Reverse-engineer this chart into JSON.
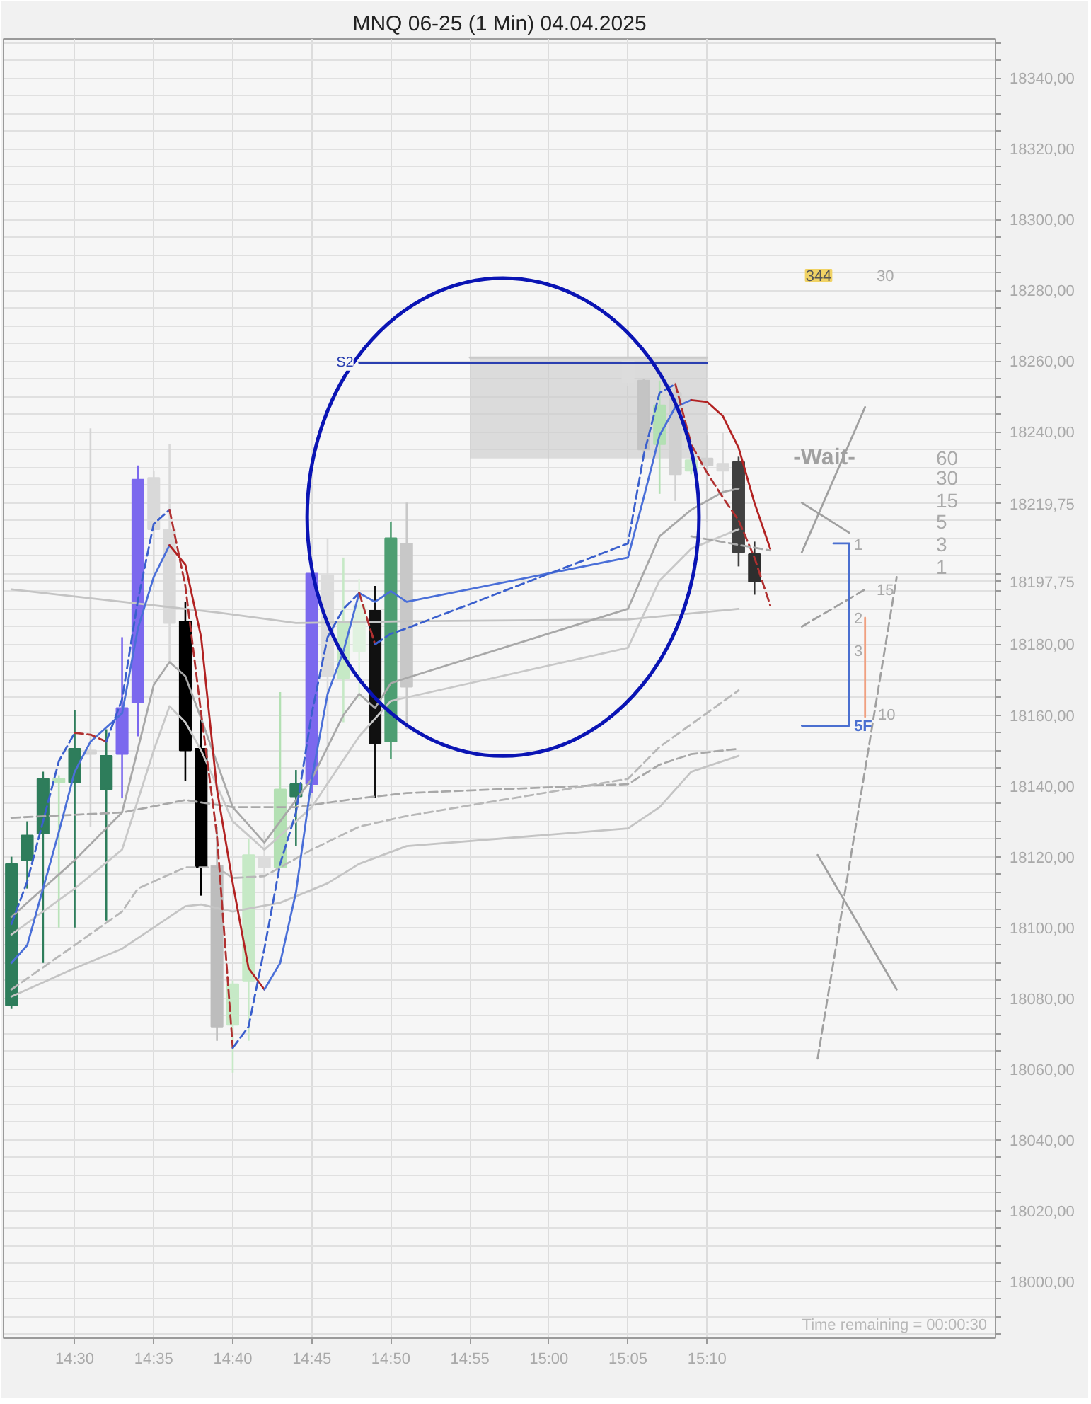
{
  "chart_data": {
    "type": "candlestick",
    "title": "MNQ 06-25 (1 Min) 04.04.2025",
    "x": [
      "2025-04-04T14:26",
      "2025-04-04T14:27",
      "2025-04-04T14:28",
      "2025-04-04T14:29",
      "2025-04-04T14:30",
      "2025-04-04T14:31",
      "2025-04-04T14:32",
      "2025-04-04T14:33",
      "2025-04-04T14:34",
      "2025-04-04T14:35",
      "2025-04-04T14:36",
      "2025-04-04T14:37",
      "2025-04-04T14:38",
      "2025-04-04T14:39",
      "2025-04-04T14:40",
      "2025-04-04T14:41",
      "2025-04-04T14:42",
      "2025-04-04T14:43",
      "2025-04-04T14:44",
      "2025-04-04T14:45",
      "2025-04-04T14:46",
      "2025-04-04T14:47",
      "2025-04-04T14:48",
      "2025-04-04T14:49",
      "2025-04-04T14:50",
      "2025-04-04T14:51",
      "2025-04-04T15:05",
      "2025-04-04T15:06",
      "2025-04-04T15:07",
      "2025-04-04T15:08",
      "2025-04-04T15:09",
      "2025-04-04T15:10",
      "2025-04-04T15:11",
      "2025-04-04T15:12",
      "2025-04-04T15:13"
    ],
    "ohlc": [
      [
        18078,
        18120,
        18077,
        18118
      ],
      [
        18119,
        18130,
        18111,
        18126
      ],
      [
        18126.5,
        18144,
        18090,
        18142
      ],
      [
        18141,
        18143,
        18100,
        18142
      ],
      [
        18141,
        18161.5,
        18100,
        18150.5
      ],
      [
        18149,
        18241,
        18128.5,
        18150
      ],
      [
        18139,
        18156,
        18102,
        18148.5
      ],
      [
        18149,
        18182,
        18136.5,
        18162
      ],
      [
        18163.5,
        18230.5,
        18154,
        18226.5
      ],
      [
        18227,
        18229,
        18196,
        18212.5
      ],
      [
        18212.5,
        18236.5,
        18175,
        18186
      ],
      [
        18186.5,
        18192,
        18141.5,
        18150
      ],
      [
        18150.5,
        18160,
        18109,
        18117
      ],
      [
        18117.5,
        18128.5,
        18068,
        18072
      ],
      [
        18072.5,
        18085,
        18059,
        18084
      ],
      [
        18085,
        18125,
        18068,
        18120.5
      ],
      [
        18120,
        18127,
        18100,
        18117
      ],
      [
        18117,
        18166.5,
        18117,
        18139
      ],
      [
        18137,
        18144.5,
        18123,
        18140.5
      ],
      [
        18140.5,
        18202,
        18138,
        18200
      ],
      [
        18199.5,
        18210,
        18135,
        18171
      ],
      [
        18170.5,
        18204.5,
        18158,
        18186.5
      ],
      [
        18178,
        18198.5,
        18164.5,
        18191
      ],
      [
        18189.5,
        18196.5,
        18136.5,
        18152
      ],
      [
        18152.5,
        18214.5,
        18147.5,
        18210
      ],
      [
        18208.5,
        18220,
        18156,
        18168
      ],
      [
        18260,
        18274.5,
        18253,
        18254
      ],
      [
        18254.5,
        18255,
        18232.5,
        18235
      ],
      [
        18236.5,
        18254.5,
        18222.5,
        18247.5
      ],
      [
        18251,
        18254,
        18220.5,
        18228
      ],
      [
        18229,
        18233,
        18228,
        18232
      ],
      [
        18232.5,
        18239,
        18214.5,
        18230.5
      ],
      [
        18231,
        18240,
        18222,
        18229
      ],
      [
        18231.5,
        18233,
        18202,
        18206
      ],
      [
        18205.5,
        18209,
        18194,
        18197.75
      ]
    ],
    "colors": [
      "#2e7d5b",
      "#2e7d5b",
      "#2e7d5b",
      "#b9e3b9",
      "#2e7d5b",
      "#d4d4d4",
      "#2e7d5b",
      "#7b68ee",
      "#7b68ee",
      "#d9d9d9",
      "#d9d9d9",
      "#000000",
      "#000000",
      "#bdbdbd",
      "#c6e9c6",
      "#c6e9c6",
      "#dcdcdc",
      "#b3e0b3",
      "#2e7d5b",
      "#7b68ee",
      "#dcdcdc",
      "#c6e9c6",
      "#e0f2e0",
      "#111111",
      "#4d9e72",
      "#c8c8c8",
      "#dcdcdc",
      "#c4c4c4",
      "#b3e0b3",
      "#d0d0d0",
      "#c6e9c6",
      "#d0d0d0",
      "#d9d9d9",
      "#404040",
      "#2e2e2e"
    ],
    "series": [
      {
        "type": "line",
        "color": "#c9c9c9",
        "line_style": "solid",
        "x": [
          "2025-04-04T14:55",
          "2025-04-04T15:10"
        ],
        "values": [
          18261,
          18261
        ],
        "lower": [
          18232.5,
          18232.5
        ],
        "upper": [
          18261,
          18261
        ]
      },
      {
        "type": "line",
        "color": "#c4c4c4",
        "line_style": "solid",
        "x": [
          "2025-04-04T14:26",
          "2025-04-04T14:33",
          "2025-04-04T14:39",
          "2025-04-04T14:44",
          "2025-04-04T14:51",
          "2025-04-04T15:05",
          "2025-04-04T15:12"
        ],
        "values": [
          18195.5,
          18192,
          18189,
          18186,
          18186.5,
          18187,
          18190
        ]
      },
      {
        "type": "line",
        "color": "#c4c4c4",
        "line_style": "solid",
        "x": [
          "2025-04-04T14:26",
          "2025-04-04T14:30",
          "2025-04-04T14:33",
          "2025-04-04T14:37",
          "2025-04-04T14:38",
          "2025-04-04T14:40",
          "2025-04-04T14:43",
          "2025-04-04T14:46",
          "2025-04-04T14:48",
          "2025-04-04T14:51",
          "2025-04-04T15:05",
          "2025-04-04T15:07",
          "2025-04-04T15:09",
          "2025-04-04T15:12"
        ],
        "values": [
          18080.5,
          18088.5,
          18094,
          18106,
          18106.5,
          18104.5,
          18107,
          18112.5,
          18118,
          18123,
          18128,
          18134,
          18144,
          18148.5
        ]
      },
      {
        "type": "line",
        "color": "#a8a8a8",
        "line_style": "dashed",
        "x": [
          "2025-04-04T14:26",
          "2025-04-04T14:33",
          "2025-04-04T14:37",
          "2025-04-04T14:40",
          "2025-04-04T14:44",
          "2025-04-04T14:48",
          "2025-04-04T14:51",
          "2025-04-04T15:05",
          "2025-04-04T15:07",
          "2025-04-04T15:09",
          "2025-04-04T15:12"
        ],
        "values": [
          18131,
          18132.5,
          18136,
          18134,
          18134,
          18136.5,
          18138,
          18140.5,
          18146,
          18149,
          18150.5
        ]
      },
      {
        "type": "line",
        "color": "#b8b8b8",
        "line_style": "dashed",
        "x": [
          "2025-04-04T14:26",
          "2025-04-04T14:30",
          "2025-04-04T14:33",
          "2025-04-04T14:34",
          "2025-04-04T14:37",
          "2025-04-04T14:39",
          "2025-04-04T14:40",
          "2025-04-04T14:42",
          "2025-04-04T14:45",
          "2025-04-04T14:48",
          "2025-04-04T14:51",
          "2025-04-04T15:05",
          "2025-04-04T15:07",
          "2025-04-04T15:12"
        ],
        "values": [
          18082.5,
          18095,
          18104.5,
          18111,
          18117,
          18117,
          18114,
          18114.5,
          18122,
          18128.5,
          18131.5,
          18142,
          18151,
          18167
        ]
      },
      {
        "type": "line",
        "color": "#a8a8a8",
        "line_style": "solid",
        "x": [
          "2025-04-04T14:26",
          "2025-04-04T14:30",
          "2025-04-04T14:33",
          "2025-04-04T14:35",
          "2025-04-04T14:36",
          "2025-04-04T14:37",
          "2025-04-04T14:38",
          "2025-04-04T14:40",
          "2025-04-04T14:42",
          "2025-04-04T14:45",
          "2025-04-04T14:47",
          "2025-04-04T14:48",
          "2025-04-04T14:49",
          "2025-04-04T14:50",
          "2025-04-04T14:51",
          "2025-04-04T15:05",
          "2025-04-04T15:07",
          "2025-04-04T15:09",
          "2025-04-04T15:11",
          "2025-04-04T15:12"
        ],
        "values": [
          18103,
          18119,
          18132.5,
          18168.5,
          18175,
          18171,
          18159,
          18134,
          18124,
          18142,
          18160,
          18166,
          18162,
          18169,
          18170.5,
          18190,
          18210.5,
          18218,
          18223,
          18224
        ]
      },
      {
        "type": "line",
        "color": "#c8c8c8",
        "line_style": "solid",
        "x": [
          "2025-04-04T14:26",
          "2025-04-04T14:30",
          "2025-04-04T14:33",
          "2025-04-04T14:35",
          "2025-04-04T14:36",
          "2025-04-04T14:37",
          "2025-04-04T14:38",
          "2025-04-04T14:40",
          "2025-04-04T14:42",
          "2025-04-04T14:45",
          "2025-04-04T14:48",
          "2025-04-04T14:50",
          "2025-04-04T14:51",
          "2025-04-04T15:05",
          "2025-04-04T15:07",
          "2025-04-04T15:09",
          "2025-04-04T15:12"
        ],
        "values": [
          18098,
          18111,
          18122,
          18150,
          18162.5,
          18158,
          18150,
          18130,
          18122,
          18134,
          18154,
          18164,
          18165,
          18179,
          18198,
          18207,
          18212.5
        ]
      },
      {
        "type": "line",
        "color": "#4a6fd8",
        "line_style": "solid",
        "x": [
          "2025-04-04T14:26",
          "2025-04-04T14:27",
          "2025-04-04T14:28",
          "2025-04-04T14:29",
          "2025-04-04T14:30",
          "2025-04-04T14:31",
          "2025-04-04T14:32",
          "2025-04-04T14:33",
          "2025-04-04T14:34",
          "2025-04-04T14:35",
          "2025-04-04T14:36"
        ],
        "values": [
          18090,
          18095,
          18111,
          18127,
          18144,
          18152.5,
          18156.5,
          18160.5,
          18184.5,
          18199,
          18208
        ]
      },
      {
        "type": "line",
        "color": "#b22222",
        "line_style": "solid",
        "x": [
          "2025-04-04T14:36",
          "2025-04-04T14:37",
          "2025-04-04T14:38",
          "2025-04-04T14:39",
          "2025-04-04T14:40",
          "2025-04-04T14:41",
          "2025-04-04T14:42"
        ],
        "values": [
          18208,
          18202.5,
          18182,
          18139,
          18112.5,
          18088.5,
          18082.5
        ]
      },
      {
        "type": "line",
        "color": "#4a6fd8",
        "line_style": "solid",
        "x": [
          "2025-04-04T14:42",
          "2025-04-04T14:43",
          "2025-04-04T14:44",
          "2025-04-04T14:45",
          "2025-04-04T14:46",
          "2025-04-04T14:47",
          "2025-04-04T14:48",
          "2025-04-04T14:49",
          "2025-04-04T14:50",
          "2025-04-04T14:51",
          "2025-04-04T15:05",
          "2025-04-04T15:06",
          "2025-04-04T15:07",
          "2025-04-04T15:08",
          "2025-04-04T15:09"
        ],
        "values": [
          18082.5,
          18090,
          18110,
          18142,
          18166,
          18178,
          18194.5,
          18192,
          18195,
          18192,
          18204.5,
          18221.5,
          18239,
          18247,
          18249
        ]
      },
      {
        "type": "line",
        "color": "#b22222",
        "line_style": "solid",
        "x": [
          "2025-04-04T15:09",
          "2025-04-04T15:10",
          "2025-04-04T15:11",
          "2025-04-04T15:12",
          "2025-04-04T15:13",
          "2025-04-04T15:14"
        ],
        "values": [
          18249,
          18248.5,
          18244.5,
          18235.5,
          18220,
          18207
        ]
      },
      {
        "type": "line",
        "color": "#3a5fcd",
        "line_style": "dashed",
        "x": [
          "2025-04-04T14:26",
          "2025-04-04T14:27",
          "2025-04-04T14:28",
          "2025-04-04T14:29",
          "2025-04-04T14:30"
        ],
        "values": [
          18101,
          18113,
          18130,
          18147,
          18155
        ]
      },
      {
        "type": "line",
        "color": "#b03030",
        "line_style": "dashed",
        "x": [
          "2025-04-04T14:30",
          "2025-04-04T14:31",
          "2025-04-04T14:32"
        ],
        "values": [
          18155,
          18154.5,
          18152.5
        ]
      },
      {
        "type": "line",
        "color": "#3a5fcd",
        "line_style": "dashed",
        "x": [
          "2025-04-04T14:32",
          "2025-04-04T14:33",
          "2025-04-04T14:34",
          "2025-04-04T14:35",
          "2025-04-04T14:36"
        ],
        "values": [
          18152.5,
          18164.5,
          18192.5,
          18214,
          18218
        ]
      },
      {
        "type": "line",
        "color": "#b03030",
        "line_style": "dashed",
        "x": [
          "2025-04-04T14:36",
          "2025-04-04T14:37",
          "2025-04-04T14:38",
          "2025-04-04T14:39",
          "2025-04-04T14:40"
        ],
        "values": [
          18218,
          18196.5,
          18160.5,
          18126,
          18066
        ]
      },
      {
        "type": "line",
        "color": "#3a5fcd",
        "line_style": "dashed",
        "x": [
          "2025-04-04T14:40",
          "2025-04-04T14:41",
          "2025-04-04T14:42",
          "2025-04-04T14:43",
          "2025-04-04T14:44",
          "2025-04-04T14:45",
          "2025-04-04T14:46",
          "2025-04-04T14:47",
          "2025-04-04T14:48"
        ],
        "values": [
          18066,
          18072,
          18094,
          18118,
          18132.5,
          18160.5,
          18182,
          18190,
          18194.5
        ]
      },
      {
        "type": "line",
        "color": "#b03030",
        "line_style": "dashed",
        "x": [
          "2025-04-04T14:48",
          "2025-04-04T14:49"
        ],
        "values": [
          18194.5,
          18180
        ]
      },
      {
        "type": "line",
        "color": "#3a5fcd",
        "line_style": "dashed",
        "x": [
          "2025-04-04T14:49",
          "2025-04-04T14:50",
          "2025-04-04T14:51",
          "2025-04-04T15:05",
          "2025-04-04T15:06",
          "2025-04-04T15:07",
          "2025-04-04T15:08"
        ],
        "values": [
          18180,
          18183,
          18184.5,
          18208.5,
          18233.5,
          18251,
          18253.5
        ]
      },
      {
        "type": "line",
        "color": "#b03030",
        "line_style": "dashed",
        "x": [
          "2025-04-04T15:08",
          "2025-04-04T15:09",
          "2025-04-04T15:10",
          "2025-04-04T15:11",
          "2025-04-04T15:12",
          "2025-04-04T15:13",
          "2025-04-04T15:14"
        ],
        "values": [
          18253.5,
          18236.5,
          18228.5,
          18221.5,
          18215,
          18204.5,
          18191
        ]
      },
      {
        "type": "line",
        "color": "#a8a8a8",
        "line_style": "dashed",
        "x": [
          "2025-04-04T15:09",
          "2025-04-04T15:14"
        ],
        "values": [
          18210.5,
          18206.5
        ]
      },
      {
        "type": "line",
        "name": "S2",
        "color": "#2a3fb0",
        "line_style": "solid",
        "x": [
          "2025-04-04T14:48",
          "2025-04-04T15:10"
        ],
        "values": [
          18259.5,
          18259.5
        ]
      },
      {
        "type": "line",
        "color": "#a0a0a0",
        "line_style": "solid",
        "x": [
          "2025-04-04T15:16",
          "2025-04-04T15:20"
        ],
        "values": [
          18206,
          18247
        ]
      },
      {
        "type": "line",
        "color": "#a0a0a0",
        "line_style": "solid",
        "x": [
          "2025-04-04T15:16",
          "2025-04-04T15:19"
        ],
        "values": [
          18220,
          18211.5
        ]
      },
      {
        "type": "line",
        "color": "#a0a0a0",
        "line_style": "dashed",
        "x": [
          "2025-04-04T15:16",
          "2025-04-04T15:20"
        ],
        "values": [
          18185,
          18195.5
        ]
      },
      {
        "type": "line",
        "color": "#a0a0a0",
        "line_style": "dashed",
        "x": [
          "2025-04-04T15:17",
          "2025-04-04T15:22"
        ],
        "values": [
          18063,
          18199
        ]
      },
      {
        "type": "line",
        "color": "#a0a0a0",
        "line_style": "solid",
        "x": [
          "2025-04-04T15:17",
          "2025-04-04T15:22"
        ],
        "values": [
          18120.5,
          18082.5
        ]
      },
      {
        "type": "line",
        "color": "#4a6fd0",
        "line_style": "solid",
        "x": [
          "2025-04-04T15:16",
          "2025-04-04T15:19",
          "2025-04-04T15:19",
          "2025-04-04T15:18"
        ],
        "values": [
          18157,
          18157,
          18208.5,
          18208.5
        ]
      },
      {
        "type": "line",
        "color": "#f0a080",
        "line_style": "solid",
        "x": [
          "2025-04-04T15:20",
          "2025-04-04T15:20"
        ],
        "values": [
          18187.5,
          18159.5
        ]
      }
    ],
    "annotations": [
      "344",
      "30",
      "-Wait-",
      "60",
      "30",
      "15",
      "5",
      "3",
      "1",
      "1",
      "15",
      "2",
      "3",
      "10",
      "5F",
      "Time remaining = 00:00:30"
    ],
    "xlim": [
      "2025-04-04T14:25:30",
      "2025-04-04T15:28:15"
    ],
    "xticks": [
      {
        "value": "2025-04-04T14:30",
        "label": "14:30"
      },
      {
        "value": "2025-04-04T14:35",
        "label": "14:35"
      },
      {
        "value": "2025-04-04T14:40",
        "label": "14:40"
      },
      {
        "value": "2025-04-04T14:45",
        "label": "14:45"
      },
      {
        "value": "2025-04-04T14:50",
        "label": "14:50"
      },
      {
        "value": "2025-04-04T14:55",
        "label": "14:55"
      },
      {
        "value": "2025-04-04T15:00",
        "label": "15:00"
      },
      {
        "value": "2025-04-04T15:05",
        "label": "15:05"
      },
      {
        "value": "2025-04-04T15:10",
        "label": "15:10"
      }
    ],
    "ylim": [
      17984,
      18351
    ],
    "yticks": [
      {
        "value": 17985,
        "label": null
      },
      {
        "value": 17990,
        "label": null
      },
      {
        "value": 17995,
        "label": null
      },
      {
        "value": 18000,
        "label": "18000,00"
      },
      {
        "value": 18005,
        "label": null
      },
      {
        "value": 18010,
        "label": null
      },
      {
        "value": 18015,
        "label": null
      },
      {
        "value": 18020,
        "label": "18020,00"
      },
      {
        "value": 18025,
        "label": null
      },
      {
        "value": 18030,
        "label": null
      },
      {
        "value": 18035,
        "label": null
      },
      {
        "value": 18040,
        "label": "18040,00"
      },
      {
        "value": 18045,
        "label": null
      },
      {
        "value": 18050,
        "label": null
      },
      {
        "value": 18055,
        "label": null
      },
      {
        "value": 18060,
        "label": "18060,00"
      },
      {
        "value": 18065,
        "label": null
      },
      {
        "value": 18070,
        "label": null
      },
      {
        "value": 18075,
        "label": null
      },
      {
        "value": 18080,
        "label": "18080,00"
      },
      {
        "value": 18085,
        "label": null
      },
      {
        "value": 18090,
        "label": null
      },
      {
        "value": 18095,
        "label": null
      },
      {
        "value": 18100,
        "label": "18100,00"
      },
      {
        "value": 18105,
        "label": null
      },
      {
        "value": 18110,
        "label": null
      },
      {
        "value": 18115,
        "label": null
      },
      {
        "value": 18120,
        "label": "18120,00"
      },
      {
        "value": 18125,
        "label": null
      },
      {
        "value": 18130,
        "label": null
      },
      {
        "value": 18135,
        "label": null
      },
      {
        "value": 18140,
        "label": "18140,00"
      },
      {
        "value": 18145,
        "label": null
      },
      {
        "value": 18150,
        "label": null
      },
      {
        "value": 18155,
        "label": null
      },
      {
        "value": 18160,
        "label": "18160,00"
      },
      {
        "value": 18165,
        "label": null
      },
      {
        "value": 18170,
        "label": null
      },
      {
        "value": 18175,
        "label": null
      },
      {
        "value": 18180,
        "label": "18180,00"
      },
      {
        "value": 18185,
        "label": null
      },
      {
        "value": 18190,
        "label": null
      },
      {
        "value": 18195,
        "label": null
      },
      {
        "value": 18197.75,
        "label": "18197,75"
      },
      {
        "value": 18200,
        "label": null
      },
      {
        "value": 18205,
        "label": null
      },
      {
        "value": 18210,
        "label": null
      },
      {
        "value": 18215,
        "label": null
      },
      {
        "value": 18219.75,
        "label": "18219,75"
      },
      {
        "value": 18220,
        "label": null
      },
      {
        "value": 18225,
        "label": null
      },
      {
        "value": 18230,
        "label": null
      },
      {
        "value": 18235,
        "label": null
      },
      {
        "value": 18240,
        "label": "18240,00"
      },
      {
        "value": 18245,
        "label": null
      },
      {
        "value": 18250,
        "label": null
      },
      {
        "value": 18255,
        "label": null
      },
      {
        "value": 18260,
        "label": "18260,00"
      },
      {
        "value": 18265,
        "label": null
      },
      {
        "value": 18270,
        "label": null
      },
      {
        "value": 18275,
        "label": null
      },
      {
        "value": 18280,
        "label": "18280,00"
      },
      {
        "value": 18285,
        "label": null
      },
      {
        "value": 18290,
        "label": null
      },
      {
        "value": 18295,
        "label": null
      },
      {
        "value": 18300,
        "label": "18300,00"
      },
      {
        "value": 18305,
        "label": null
      },
      {
        "value": 18310,
        "label": null
      },
      {
        "value": 18315,
        "label": null
      },
      {
        "value": 18320,
        "label": "18320,00"
      },
      {
        "value": 18325,
        "label": null
      },
      {
        "value": 18330,
        "label": null
      },
      {
        "value": 18335,
        "label": null
      },
      {
        "value": 18340,
        "label": "18340,00"
      },
      {
        "value": 18345,
        "label": null
      },
      {
        "value": 18350,
        "label": null
      }
    ],
    "grid": true
  }
}
